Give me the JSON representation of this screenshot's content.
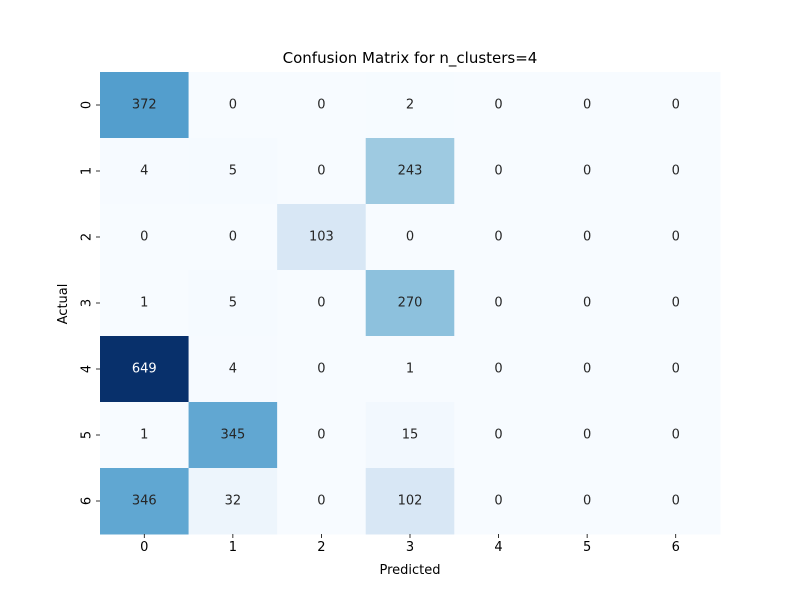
{
  "chart_data": {
    "type": "heatmap",
    "title": "Confusion Matrix for n_clusters=4",
    "xlabel": "Predicted",
    "ylabel": "Actual",
    "x_categories": [
      "0",
      "1",
      "2",
      "3",
      "4",
      "5",
      "6"
    ],
    "y_categories": [
      "0",
      "1",
      "2",
      "3",
      "4",
      "5",
      "6"
    ],
    "values": [
      [
        372,
        0,
        0,
        2,
        0,
        0,
        0
      ],
      [
        4,
        5,
        0,
        243,
        0,
        0,
        0
      ],
      [
        0,
        0,
        103,
        0,
        0,
        0,
        0
      ],
      [
        1,
        5,
        0,
        270,
        0,
        0,
        0
      ],
      [
        649,
        4,
        0,
        1,
        0,
        0,
        0
      ],
      [
        1,
        345,
        0,
        15,
        0,
        0,
        0
      ],
      [
        346,
        32,
        0,
        102,
        0,
        0,
        0
      ]
    ],
    "vmin": 0,
    "vmax": 649,
    "colormap": "Blues",
    "annotated": true,
    "colorbar": false,
    "grid": false
  }
}
